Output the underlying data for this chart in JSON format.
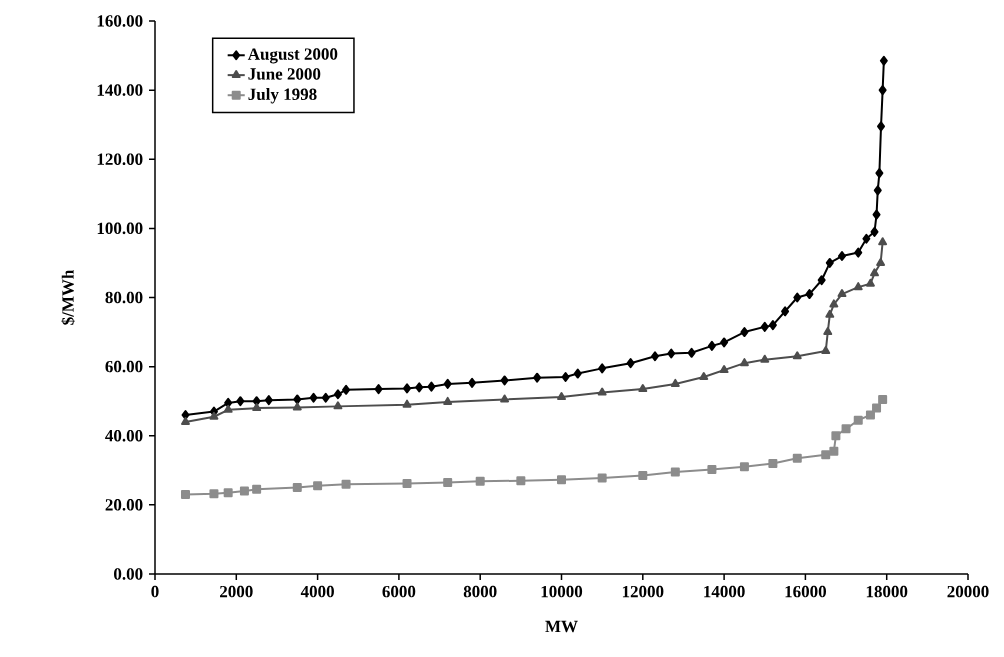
{
  "chart_data": {
    "type": "line",
    "xlabel": "MW",
    "ylabel": "$/MWh",
    "xlim": [
      0,
      20000
    ],
    "ylim": [
      0,
      160
    ],
    "xticks": [
      0,
      2000,
      4000,
      6000,
      8000,
      10000,
      12000,
      14000,
      16000,
      18000,
      20000
    ],
    "yticks": [
      {
        "value": 0,
        "label": "0.00"
      },
      {
        "value": 20,
        "label": "20.00"
      },
      {
        "value": 40,
        "label": "40.00"
      },
      {
        "value": 60,
        "label": "60.00"
      },
      {
        "value": 80,
        "label": "80.00"
      },
      {
        "value": 100,
        "label": "100.00"
      },
      {
        "value": 120,
        "label": "120.00"
      },
      {
        "value": 140,
        "label": "140.00"
      },
      {
        "value": 160,
        "label": "160.00"
      }
    ],
    "grid": false,
    "legend": "top left",
    "line_style": "solid",
    "series": [
      {
        "name": "August 2000",
        "color": "#000000",
        "marker": "diamond",
        "x": [
          750,
          1450,
          1800,
          2100,
          2500,
          2800,
          3500,
          3900,
          4200,
          4500,
          4700,
          5500,
          6200,
          6500,
          6800,
          7200,
          7800,
          8600,
          9400,
          10100,
          10400,
          11000,
          11700,
          12300,
          12700,
          13200,
          13700,
          14000,
          14500,
          15000,
          15200,
          15500,
          15800,
          16100,
          16400,
          16600,
          16900,
          17300,
          17500,
          17700,
          17750,
          17780,
          17820,
          17860,
          17900,
          17930
        ],
        "values": [
          46,
          47,
          49.5,
          50,
          50,
          50.3,
          50.5,
          51,
          51,
          52,
          53.3,
          53.5,
          53.7,
          54,
          54.2,
          55,
          55.3,
          56,
          56.8,
          57,
          58,
          59.5,
          61,
          63,
          63.8,
          64,
          66,
          67,
          70,
          71.5,
          72,
          76,
          80,
          81,
          85,
          90,
          92,
          93,
          97,
          99,
          104,
          111,
          116,
          129.5,
          140,
          148.5
        ]
      },
      {
        "name": "June 2000",
        "color": "#4d4d4d",
        "marker": "triangle",
        "x": [
          750,
          1450,
          1800,
          2500,
          3500,
          4500,
          6200,
          7200,
          8600,
          10000,
          11000,
          12000,
          12800,
          13500,
          14000,
          14500,
          15000,
          15800,
          16500,
          16550,
          16600,
          16700,
          16900,
          17300,
          17600,
          17700,
          17850,
          17900
        ],
        "values": [
          44,
          45.5,
          47.5,
          48,
          48.2,
          48.5,
          49,
          49.8,
          50.5,
          51.2,
          52.5,
          53.5,
          55,
          57,
          59,
          61,
          62,
          63,
          64.5,
          70,
          75,
          78,
          81,
          83,
          84,
          87,
          90,
          96
        ]
      },
      {
        "name": "July 1998",
        "color": "#8c8c8c",
        "marker": "square",
        "x": [
          750,
          1450,
          1800,
          2200,
          2500,
          3500,
          4000,
          4700,
          6200,
          7200,
          8000,
          9000,
          10000,
          11000,
          12000,
          12800,
          13700,
          14500,
          15200,
          15800,
          16500,
          16700,
          16750,
          17000,
          17300,
          17600,
          17750,
          17900
        ],
        "values": [
          23,
          23.2,
          23.5,
          24,
          24.5,
          25,
          25.5,
          26,
          26.2,
          26.5,
          26.8,
          27,
          27.3,
          27.8,
          28.5,
          29.5,
          30.2,
          31,
          32,
          33.5,
          34.5,
          35.5,
          40,
          42,
          44.5,
          46,
          48,
          50.5
        ]
      }
    ]
  }
}
